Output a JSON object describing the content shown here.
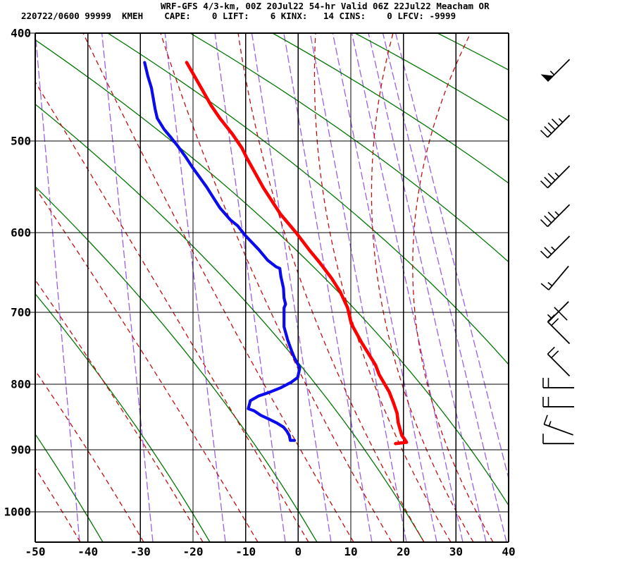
{
  "header": {
    "line1": "WRF-GFS 4/3-km, 00Z 20Jul22 54-hr Valid 06Z 22Jul22 Meacham OR",
    "line2": "220722/0600 99999  KMEH    CAPE:    0 LIFT:    6 KINX:   14 CINS:    0 LFCV: -9999",
    "station": {
      "id": "220722/0600",
      "wmo": "99999",
      "site": "KMEH"
    },
    "indices": {
      "CAPE": 0,
      "LIFT": 6,
      "KINX": 14,
      "CINS": 0,
      "LFCV": -9999
    }
  },
  "chart_data": {
    "type": "skew-t-log-p-sounding",
    "title": "WRF-GFS 4/3-km, 00Z 20Jul22 54-hr Valid 06Z 22Jul22 Meacham OR",
    "x_axis": {
      "tick_labels": [
        -50,
        -40,
        -30,
        -20,
        -10,
        0,
        10,
        20,
        30,
        40
      ],
      "range": [
        -50,
        40
      ]
    },
    "y_axis": {
      "tick_labels": [
        400,
        500,
        600,
        700,
        800,
        900,
        1000
      ],
      "range_hpa": [
        400,
        1053
      ],
      "scale": "log-pressure"
    },
    "temperature_profile_p_c": [
      [
        425,
        -21.2
      ],
      [
        445,
        -18.8
      ],
      [
        465,
        -16.5
      ],
      [
        477,
        -14.9
      ],
      [
        493,
        -12.5
      ],
      [
        507,
        -10.7
      ],
      [
        517,
        -9.8
      ],
      [
        549,
        -6.6
      ],
      [
        578,
        -3.4
      ],
      [
        600,
        -0.4
      ],
      [
        622,
        2.3
      ],
      [
        635,
        4.0
      ],
      [
        655,
        6.3
      ],
      [
        673,
        8.0
      ],
      [
        694,
        9.4
      ],
      [
        715,
        10.1
      ],
      [
        741,
        12.1
      ],
      [
        772,
        14.7
      ],
      [
        786,
        15.4
      ],
      [
        811,
        17.3
      ],
      [
        827,
        18.1
      ],
      [
        843,
        18.8
      ],
      [
        857,
        19.0
      ],
      [
        877,
        19.7
      ],
      [
        883,
        20.2
      ],
      [
        888,
        20.6
      ],
      [
        890,
        18.5
      ]
    ],
    "dewpoint_profile_p_c": [
      [
        425,
        -29.2
      ],
      [
        437,
        -28.6
      ],
      [
        448,
        -27.9
      ],
      [
        468,
        -27.2
      ],
      [
        477,
        -26.8
      ],
      [
        488,
        -25.5
      ],
      [
        497,
        -24.1
      ],
      [
        505,
        -22.9
      ],
      [
        516,
        -21.4
      ],
      [
        527,
        -20.1
      ],
      [
        537,
        -18.8
      ],
      [
        548,
        -17.4
      ],
      [
        560,
        -16.1
      ],
      [
        571,
        -14.9
      ],
      [
        585,
        -12.9
      ],
      [
        592,
        -11.5
      ],
      [
        603,
        -10.1
      ],
      [
        620,
        -7.5
      ],
      [
        633,
        -5.8
      ],
      [
        641,
        -4.2
      ],
      [
        643,
        -3.5
      ],
      [
        653,
        -3.3
      ],
      [
        668,
        -2.8
      ],
      [
        681,
        -2.7
      ],
      [
        689,
        -2.4
      ],
      [
        694,
        -2.7
      ],
      [
        719,
        -2.7
      ],
      [
        737,
        -2.0
      ],
      [
        751,
        -1.3
      ],
      [
        762,
        -0.7
      ],
      [
        776,
        0.3
      ],
      [
        790,
        -0.1
      ],
      [
        797,
        -1.3
      ],
      [
        805,
        -3.3
      ],
      [
        812,
        -5.6
      ],
      [
        817,
        -7.5
      ],
      [
        824,
        -9.1
      ],
      [
        836,
        -9.5
      ],
      [
        839,
        -8.4
      ],
      [
        846,
        -7.1
      ],
      [
        852,
        -5.5
      ],
      [
        858,
        -4.0
      ],
      [
        864,
        -2.8
      ],
      [
        870,
        -2.2
      ],
      [
        877,
        -1.7
      ],
      [
        885,
        -1.5
      ],
      [
        885,
        -0.7
      ]
    ],
    "wind_barbs": [
      {
        "p": 432,
        "deg": 225,
        "kt": 55
      },
      {
        "p": 485,
        "deg": 225,
        "kt": 45
      },
      {
        "p": 537,
        "deg": 225,
        "kt": 35
      },
      {
        "p": 580,
        "deg": 225,
        "kt": 35
      },
      {
        "p": 617,
        "deg": 225,
        "kt": 25
      },
      {
        "p": 655,
        "deg": 220,
        "kt": 15
      },
      {
        "p": 699,
        "deg": 225,
        "kt": 5,
        "variable": true
      },
      {
        "p": 727,
        "deg": 315,
        "kt": 20
      },
      {
        "p": 772,
        "deg": 315,
        "kt": 20
      },
      {
        "p": 805,
        "deg": 270,
        "kt": 20
      },
      {
        "p": 833,
        "deg": 270,
        "kt": 20
      },
      {
        "p": 868,
        "deg": 290,
        "kt": 15
      },
      {
        "p": 890,
        "deg": 270,
        "kt": 10
      }
    ],
    "background": {
      "isotherm_step_c": 10,
      "dry_adiabats": {
        "count": 10,
        "bottom_x_start": 146,
        "bottom_x_step": 152,
        "top_x_start": -432,
        "top_x_step": 117,
        "mid_pull": 228
      },
      "moist_adiabats": {
        "top_bottom_x_pairs": [
          [
            -542,
            20
          ],
          [
            -432,
            114
          ],
          [
            -322,
            204
          ],
          [
            -212,
            288
          ],
          [
            -102,
            366
          ],
          [
            8,
            438
          ],
          [
            118,
            502
          ],
          [
            228,
            556
          ],
          [
            338,
            602
          ],
          [
            448,
            640
          ],
          [
            558,
            672
          ],
          [
            668,
            700
          ]
        ]
      },
      "mixing_ratio_bottom_x": [
        10,
        113,
        217,
        320,
        405,
        470,
        528,
        577,
        620,
        657,
        690,
        719,
        745
      ]
    },
    "colors": {
      "temperature": "#ff0000",
      "dewpoint": "#0b0bee",
      "dry_adiabat": "#007700",
      "moist_adiabat": "#c01010",
      "mixing_ratio": "#9b5fe6",
      "grid": "#000000",
      "wind_barb": "#000000"
    },
    "legend": "red = temperature, blue = dewpoint, wind barbs at right"
  }
}
